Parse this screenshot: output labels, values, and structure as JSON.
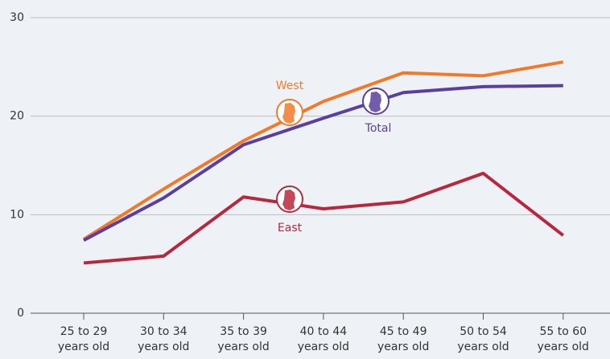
{
  "chart_data": {
    "type": "line",
    "categories": [
      "25 to 29 years old",
      "30 to 34 years old",
      "35 to 39 years old",
      "40 to 44 years old",
      "45 to 49 years old",
      "50 to 54 years old",
      "55 to 60 years old"
    ],
    "series": [
      {
        "name": "West",
        "color": "#f07a2a",
        "values": [
          7.5,
          12.6,
          17.5,
          21.5,
          24.4,
          24.1,
          25.5
        ]
      },
      {
        "name": "Total",
        "color": "#5b3f9e",
        "values": [
          7.4,
          11.7,
          17.1,
          19.8,
          22.4,
          23.0,
          23.1
        ]
      },
      {
        "name": "East",
        "color": "#b8283c",
        "values": [
          5.1,
          5.8,
          11.8,
          10.6,
          11.3,
          14.2,
          7.9
        ]
      }
    ],
    "ylim": [
      0,
      30
    ],
    "yticks": [
      0,
      10,
      20,
      30
    ],
    "grid": true
  }
}
